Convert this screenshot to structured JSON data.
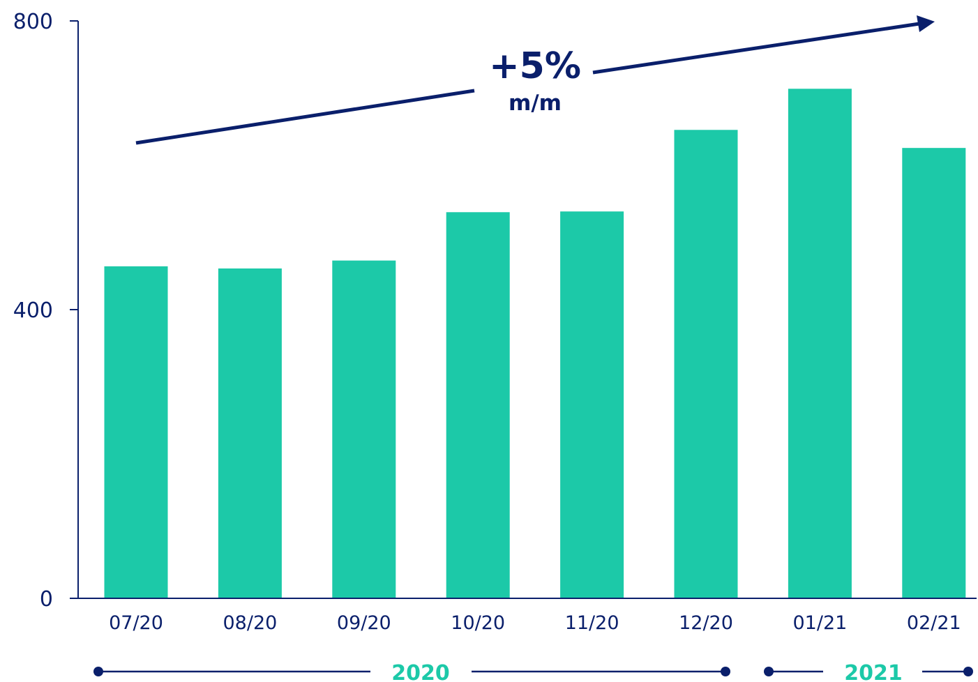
{
  "chart_data": {
    "type": "bar",
    "categories": [
      "07/20",
      "08/20",
      "09/20",
      "10/20",
      "11/20",
      "12/20",
      "01/21",
      "02/21"
    ],
    "values": [
      460,
      457,
      468,
      535,
      536,
      649,
      706,
      624
    ],
    "ylim": [
      0,
      800
    ],
    "yticks": [
      0,
      400,
      800
    ],
    "title": "",
    "xlabel": "",
    "ylabel": "",
    "grid": false,
    "annotation": {
      "headline": "+5%",
      "subline": "m/m"
    },
    "year_groups": [
      {
        "label": "2020",
        "from": "07/20",
        "to": "12/20"
      },
      {
        "label": "2021",
        "from": "01/21",
        "to": "02/21"
      }
    ],
    "colors": {
      "bar": "#1cc9a8",
      "axis": "#0a1f6b",
      "annotation": "#0a1f6b",
      "year_label": "#1cc9a8"
    }
  }
}
